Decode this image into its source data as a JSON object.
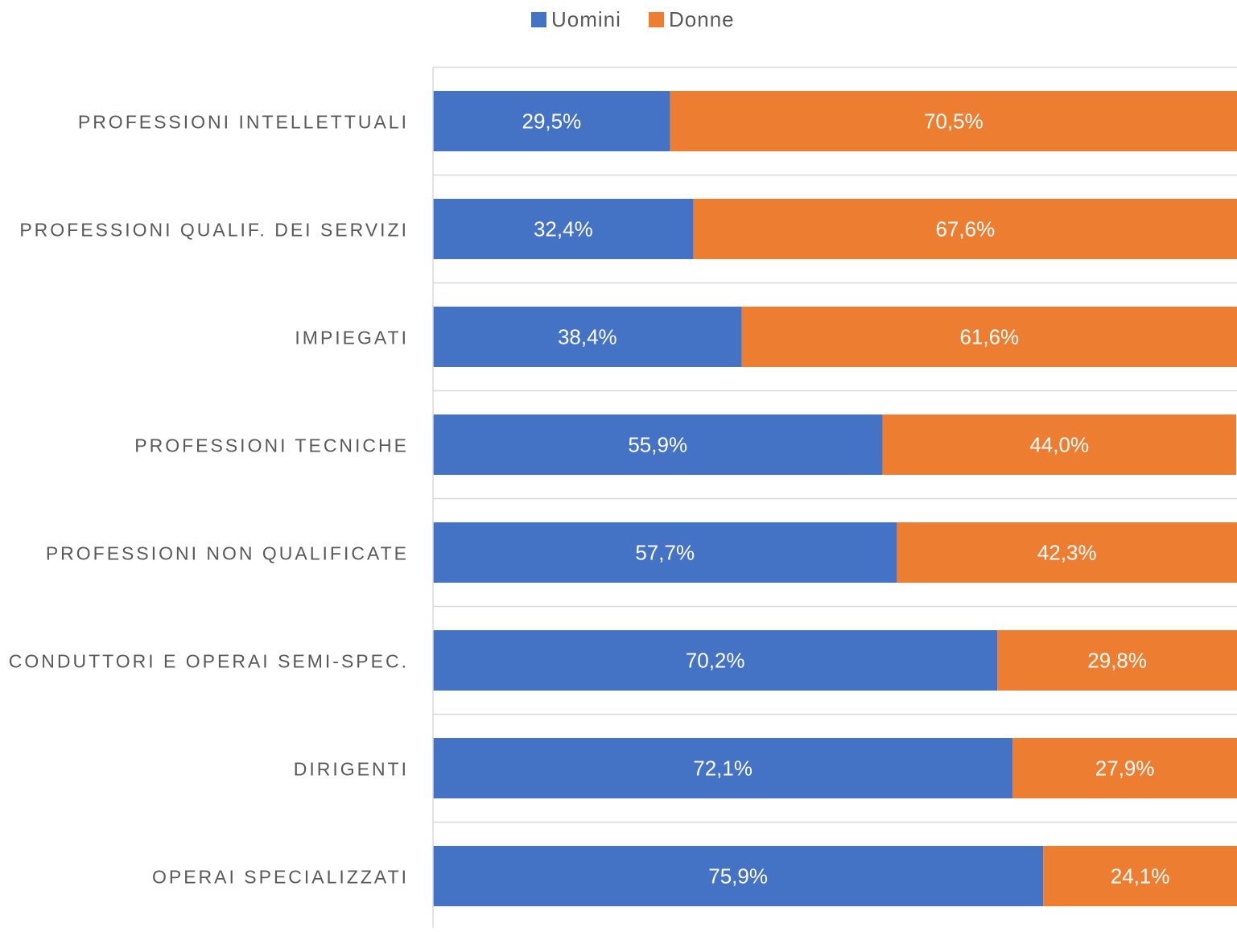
{
  "chart_data": {
    "type": "bar",
    "orientation": "horizontal",
    "stacked": "percent",
    "title": "",
    "xlabel": "",
    "ylabel": "",
    "xlim": [
      0,
      100
    ],
    "grid": true,
    "legend_position": "top",
    "categories": [
      "PROFESSIONI INTELLETTUALI",
      "PROFESSIONI QUALIF. DEI SERVIZI",
      "IMPIEGATI",
      "PROFESSIONI TECNICHE",
      "PROFESSIONI NON QUALIFICATE",
      "CONDUTTORI E OPERAI SEMI-SPEC.",
      "DIRIGENTI",
      "OPERAI SPECIALIZZATI"
    ],
    "series": [
      {
        "name": "Uomini",
        "color": "#4472C4",
        "values": [
          29.5,
          32.4,
          38.4,
          55.9,
          57.7,
          70.2,
          72.1,
          75.9
        ],
        "labels": [
          "29,5%",
          "32,4%",
          "38,4%",
          "55,9%",
          "57,7%",
          "70,2%",
          "72,1%",
          "75,9%"
        ]
      },
      {
        "name": "Donne",
        "color": "#ED7D31",
        "values": [
          70.5,
          67.6,
          61.6,
          44.0,
          42.3,
          29.8,
          27.9,
          24.1
        ],
        "labels": [
          "70,5%",
          "67,6%",
          "61,6%",
          "44,0%",
          "42,3%",
          "29,8%",
          "27,9%",
          "24,1%"
        ]
      }
    ]
  }
}
